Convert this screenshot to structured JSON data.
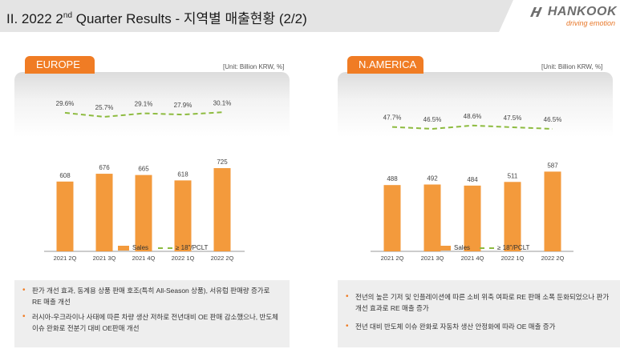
{
  "header": {
    "title_pre": "II. 2022 2",
    "title_sup": "nd",
    "title_post": " Quarter Results - 지역별 매출현황 (2/2)"
  },
  "logo": {
    "name": "HANKOOK",
    "tagline": "driving emotion",
    "icon": "hankook-logo-icon"
  },
  "colors": {
    "accent": "#f07c24",
    "bar": "#f39a3c",
    "line": "#8dbb3f",
    "notes_bg": "#eeeeee"
  },
  "legend": {
    "sales": "Sales",
    "ratio": "≥ 18\"/PCLT"
  },
  "europe": {
    "tab_label": "EUROPE",
    "unit": "[Unit: Billion KRW, %]",
    "notes": [
      "판가 개선 효과, 동계용 상품 판매 호조(특히 All-Season 상품), 서유럽 판매량 증가로 RE 매출 개선",
      "러시아-우크라이나 사태에 따른 차량 생산 저하로 전년대비 OE 판매 감소했으나, 반도체 이슈 완화로 전분기 대비 OE판매 개선"
    ],
    "chart_data": {
      "type": "bar",
      "categories": [
        "2021 2Q",
        "2021 3Q",
        "2021 4Q",
        "2022 1Q",
        "2022 2Q"
      ],
      "series": [
        {
          "name": "Sales",
          "type": "bar",
          "values": [
            608,
            676,
            665,
            618,
            725
          ],
          "labels": [
            "608",
            "676",
            "665",
            "618",
            "725"
          ]
        },
        {
          "name": "≥ 18\"/PCLT",
          "type": "line",
          "values": [
            29.6,
            25.7,
            29.1,
            27.9,
            30.1
          ],
          "labels": [
            "29.6%",
            "25.7%",
            "29.1%",
            "27.9%",
            "30.1%"
          ]
        }
      ],
      "legend": "bottom"
    }
  },
  "namerica": {
    "tab_label": "N.AMERICA",
    "unit": "[Unit: Billion KRW, %]",
    "notes": [
      "전년의 높은 기저 및 인플레이션에 따른 소비 위축 여파로 RE 판매 소폭 둔화되었으나 판가 개선 효과로 RE 매출 증가",
      "전년 대비 반도체 이슈 완화로 자동차 생산 안정화에 따라 OE 매출 증가"
    ],
    "chart_data": {
      "type": "bar",
      "categories": [
        "2021 2Q",
        "2021 3Q",
        "2021 4Q",
        "2022 1Q",
        "2022 2Q"
      ],
      "series": [
        {
          "name": "Sales",
          "type": "bar",
          "values": [
            488,
            492,
            484,
            511,
            587
          ],
          "labels": [
            "488",
            "492",
            "484",
            "511",
            "587"
          ]
        },
        {
          "name": "≥ 18\"/PCLT",
          "type": "line",
          "values": [
            47.7,
            46.5,
            48.6,
            47.5,
            46.5
          ],
          "labels": [
            "47.7%",
            "46.5%",
            "48.6%",
            "47.5%",
            "46.5%"
          ]
        }
      ],
      "legend": "bottom"
    }
  }
}
